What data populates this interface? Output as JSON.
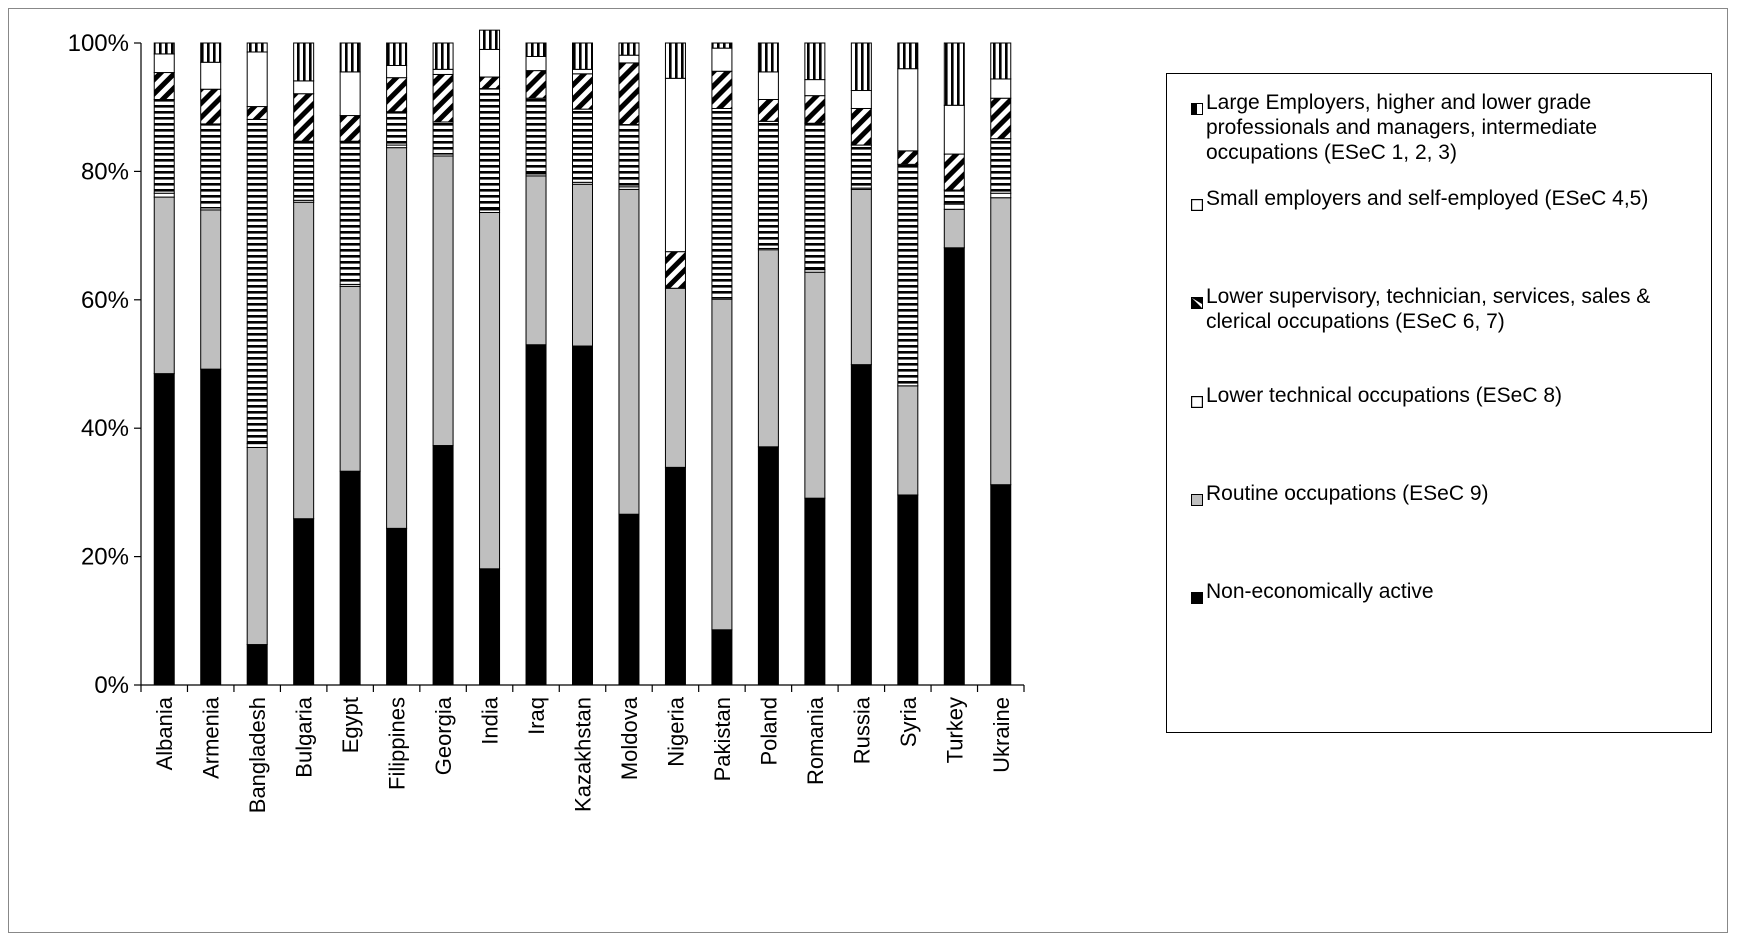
{
  "chart_data": {
    "type": "bar",
    "stacked": true,
    "percent_stacked": true,
    "categories": [
      "Albania",
      "Armenia",
      "Bangladesh",
      "Bulgaria",
      "Egypt",
      "Filippines",
      "Georgia",
      "India",
      "Iraq",
      "Kazakhstan",
      "Moldova",
      "Nigeria",
      "Pakistan",
      "Poland",
      "Romania",
      "Russia",
      "Syria",
      "Turkey",
      "Ukraine"
    ],
    "ylim": [
      0,
      100
    ],
    "yticks": [
      "0%",
      "20%",
      "40%",
      "60%",
      "80%",
      "100%"
    ],
    "grid": false,
    "legend_position": "right",
    "series": [
      {
        "name": "Non-economically active",
        "pattern": "solid-black",
        "values": [
          48.5,
          49.2,
          6.3,
          25.9,
          33.3,
          24.4,
          37.3,
          18.1,
          53.0,
          52.8,
          26.6,
          33.9,
          8.6,
          37.1,
          29.1,
          49.9,
          29.6,
          68.1,
          31.2
        ]
      },
      {
        "name": "Routine occupations (ESeC 9)",
        "pattern": "solid-gray",
        "values": [
          27.5,
          24.8,
          30.7,
          49.3,
          28.8,
          59.3,
          45.1,
          55.5,
          26.3,
          25.2,
          50.6,
          27.9,
          51.5,
          30.7,
          35.2,
          27.3,
          17.0,
          6.0,
          44.7
        ]
      },
      {
        "name": "Lower technical occupations (ESeC 8)",
        "pattern": "white",
        "values": [
          0.6,
          0.3,
          0.6,
          0.3,
          0.3,
          0.4,
          0.3,
          0.4,
          0.3,
          0.3,
          0.4,
          0.0,
          0.2,
          0.2,
          0.4,
          0.2,
          0.0,
          0.8,
          0.7
        ]
      },
      {
        "name": "Lower supervisory, technician, services, sales & clerical occupations (ESeC 6, 7)",
        "pattern": "horizontal-stripes",
        "values": [
          14.6,
          13.1,
          50.5,
          9.2,
          22.3,
          5.2,
          5.0,
          18.9,
          11.8,
          11.4,
          9.7,
          0.0,
          29.5,
          19.8,
          22.8,
          6.7,
          34.5,
          2.2,
          8.5
        ]
      },
      {
        "name": "Small employers and self-employed (ESeC 4,5)",
        "pattern": "diagonal-stripes",
        "values": [
          4.2,
          5.4,
          2.0,
          7.4,
          4.0,
          5.3,
          7.4,
          1.8,
          4.3,
          5.5,
          9.6,
          5.7,
          5.8,
          3.4,
          4.3,
          5.7,
          2.1,
          5.6,
          6.3
        ]
      },
      {
        "name": "Large Employers, higher and lower grade professionals and managers, intermediate occupations (ESeC 1, 2, 3)",
        "pattern": "white",
        "values": [
          2.9,
          4.2,
          8.5,
          2.0,
          6.8,
          1.9,
          0.8,
          4.3,
          2.2,
          0.7,
          1.2,
          27.0,
          3.6,
          4.3,
          2.5,
          2.8,
          12.8,
          7.6,
          3.0
        ]
      },
      {
        "name": "",
        "pattern": "vertical-stripes",
        "values": [
          1.7,
          3.0,
          1.4,
          5.9,
          4.5,
          3.5,
          4.1,
          3.0,
          2.1,
          4.1,
          1.9,
          5.5,
          0.8,
          4.5,
          5.7,
          7.4,
          4.0,
          9.7,
          5.6
        ]
      }
    ],
    "legend": [
      {
        "label": "Large Employers, higher and lower grade professionals and managers, intermediate occupations (ESeC 1, 2, 3)",
        "swatch": "half-black"
      },
      {
        "label": "Small employers and self-employed (ESeC 4,5)",
        "swatch": "white"
      },
      {
        "label": "Lower supervisory, technician, services, sales & clerical occupations (ESeC 6, 7)",
        "swatch": "diagonal"
      },
      {
        "label": "Lower technical occupations (ESeC 8)",
        "swatch": "white"
      },
      {
        "label": "Routine occupations (ESeC 9)",
        "swatch": "gray"
      },
      {
        "label": "Non-economically active",
        "swatch": "black"
      }
    ],
    "colors": {
      "black": "#000000",
      "gray": "#bfbfbf",
      "white": "#ffffff",
      "stroke": "#000000"
    }
  }
}
